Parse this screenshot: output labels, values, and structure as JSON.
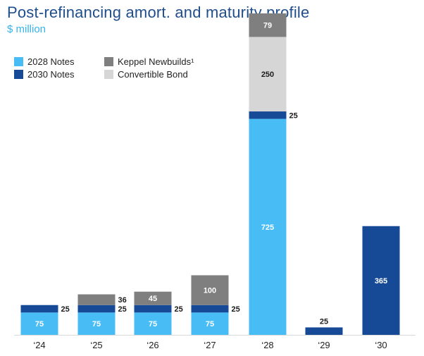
{
  "chart_data": {
    "type": "bar",
    "title": "Post-refinancing amort. and maturity profile",
    "subtitle": "$ million",
    "categories": [
      "‘24",
      "‘25",
      "‘26",
      "‘27",
      "‘28",
      "‘29",
      "‘30"
    ],
    "series": [
      {
        "name": "2028 Notes",
        "color": "#47bcf5",
        "values": [
          75,
          75,
          75,
          75,
          725,
          0,
          0
        ]
      },
      {
        "name": "2030 Notes",
        "color": "#164a96",
        "values": [
          25,
          25,
          25,
          25,
          25,
          25,
          365
        ]
      },
      {
        "name": "Convertible Bond",
        "color": "#d6d6d6",
        "values": [
          0,
          0,
          0,
          0,
          250,
          0,
          0
        ]
      },
      {
        "name": "Keppel Newbuilds¹",
        "color": "#7f7f7f",
        "values": [
          0,
          36,
          45,
          100,
          79,
          0,
          0
        ]
      }
    ],
    "stacked": true,
    "legend_placement": "top-left",
    "grid": false
  }
}
